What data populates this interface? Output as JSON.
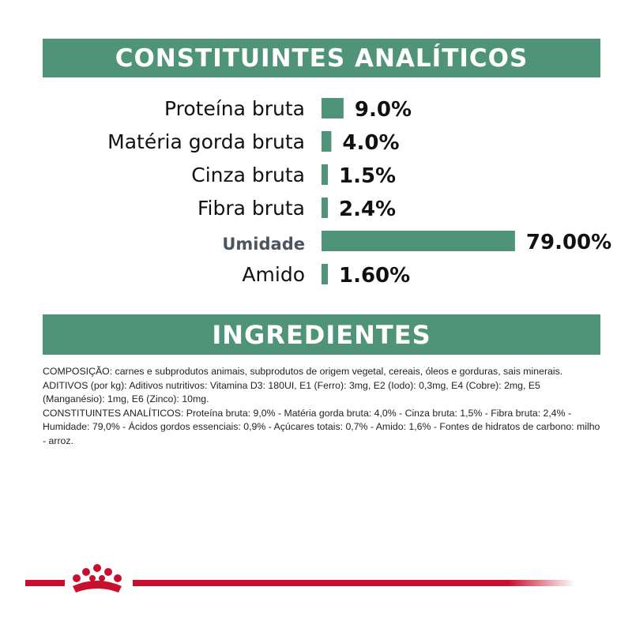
{
  "headers": {
    "analytic_title": "CONSTITUINTES ANALÍTICOS",
    "ingredients_title": "INGREDIENTES"
  },
  "chart_data": {
    "type": "bar",
    "orientation": "horizontal",
    "categories": [
      "Proteína bruta",
      "Matéria gorda bruta",
      "Cinza bruta",
      "Fibra bruta",
      "Umidade",
      "Amido"
    ],
    "values": [
      9.0,
      4.0,
      1.5,
      2.4,
      79.0,
      1.6
    ],
    "value_labels": [
      "9.0%",
      "4.0%",
      "1.5%",
      "2.4%",
      "79.00%",
      "1.60%"
    ],
    "unit": "%",
    "bar_color": "#4f9479",
    "highlight_category": "Umidade",
    "highlight_color": "#4a5560",
    "grid": false
  },
  "ingredients": {
    "paragraphs": [
      "COMPOSIÇÃO: carnes e subprodutos animais, subprodutos de origem vegetal, cereais, óleos e gorduras, sais minerais.",
      "ADITIVOS (por kg): Aditivos nutritivos: Vitamina D3: 180UI, E1 (Ferro): 3mg, E2 (Iodo): 0,3mg, E4 (Cobre): 2mg, E5 (Manganésio): 1mg, E6 (Zinco): 10mg.",
      "CONSTITUINTES ANALÍTICOS: Proteína bruta: 9,0% - Matéria gorda bruta: 4,0% - Cinza bruta: 1,5% - Fibra bruta: 2,4% - Humidade: 79,0% - Ácidos gordos essenciais: 0,9% - Açúcares totais: 0,7% - Amido: 1,6% - Fontes de hidratos de carbono: milho - arroz."
    ]
  },
  "brand": {
    "logo_icon": "crown-icon",
    "accent_color": "#c8102e"
  }
}
